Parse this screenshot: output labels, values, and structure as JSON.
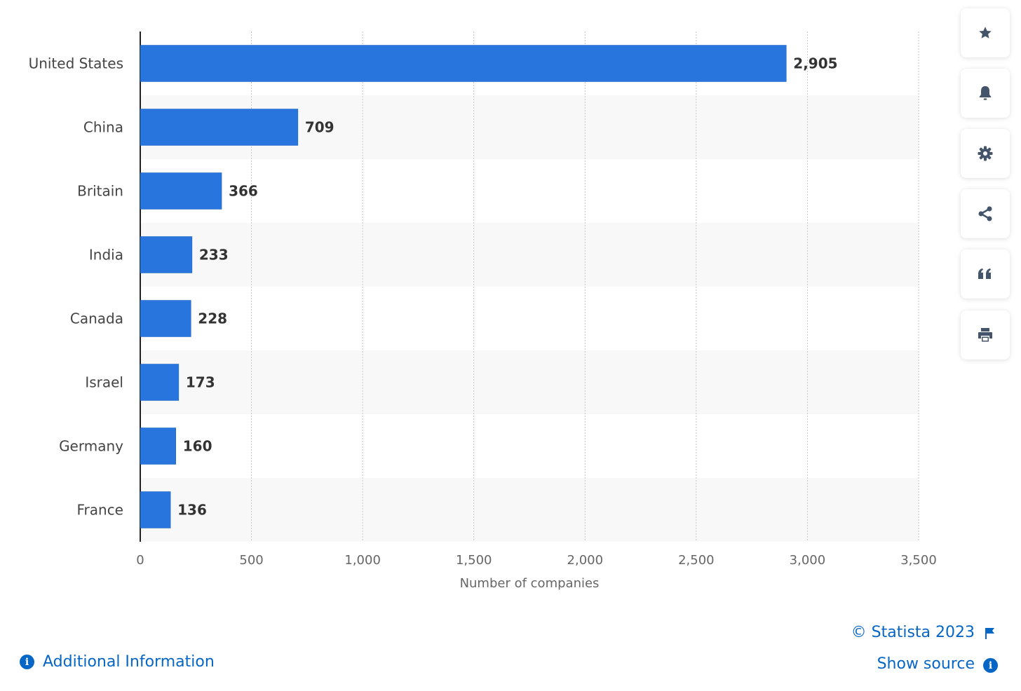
{
  "chart_data": {
    "type": "bar",
    "orientation": "horizontal",
    "categories": [
      "United States",
      "China",
      "Britain",
      "India",
      "Canada",
      "Israel",
      "Germany",
      "France"
    ],
    "values": [
      2905,
      709,
      366,
      233,
      228,
      173,
      160,
      136
    ],
    "value_labels": [
      "2,905",
      "709",
      "366",
      "233",
      "228",
      "173",
      "160",
      "136"
    ],
    "xlabel": "Number of companies",
    "ylabel": "",
    "xlim": [
      0,
      3500
    ],
    "xticks": [
      0,
      500,
      1000,
      1500,
      2000,
      2500,
      3000,
      3500
    ],
    "xtick_labels": [
      "0",
      "500",
      "1,000",
      "1,500",
      "2,000",
      "2,500",
      "3,000",
      "3,500"
    ],
    "grid": true,
    "bar_color": "#2876dd",
    "band_color": "#f8f8f8"
  },
  "toolbar": [
    {
      "name": "favorite",
      "icon": "star-icon"
    },
    {
      "name": "notifications",
      "icon": "bell-icon"
    },
    {
      "name": "settings",
      "icon": "gear-icon"
    },
    {
      "name": "share",
      "icon": "share-icon"
    },
    {
      "name": "cite",
      "icon": "quote-icon"
    },
    {
      "name": "print",
      "icon": "printer-icon"
    }
  ],
  "footer": {
    "copyright": "© Statista 2023",
    "show_source": "Show source",
    "additional_info": "Additional Information",
    "link_color": "#0666c6",
    "icon_color": "#44546a"
  }
}
